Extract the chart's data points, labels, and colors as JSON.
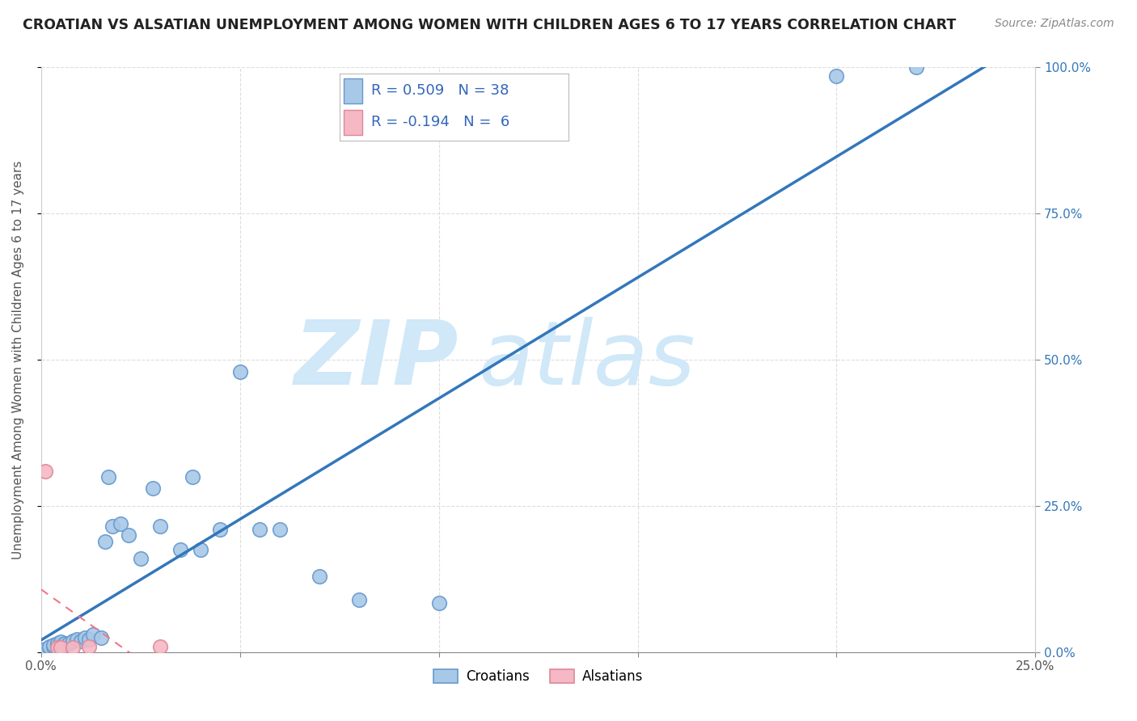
{
  "title": "CROATIAN VS ALSATIAN UNEMPLOYMENT AMONG WOMEN WITH CHILDREN AGES 6 TO 17 YEARS CORRELATION CHART",
  "source": "Source: ZipAtlas.com",
  "ylabel": "Unemployment Among Women with Children Ages 6 to 17 years",
  "xlim": [
    0.0,
    0.25
  ],
  "ylim": [
    0.0,
    1.0
  ],
  "xticks": [
    0.0,
    0.05,
    0.1,
    0.15,
    0.2,
    0.25
  ],
  "yticks": [
    0.0,
    0.25,
    0.5,
    0.75,
    1.0
  ],
  "xticklabels": [
    "0.0%",
    "",
    "",
    "",
    "",
    "25.0%"
  ],
  "yticklabels_right": [
    "0.0%",
    "25.0%",
    "50.0%",
    "75.0%",
    "100.0%"
  ],
  "croatian_x": [
    0.001,
    0.002,
    0.002,
    0.003,
    0.003,
    0.004,
    0.004,
    0.005,
    0.005,
    0.006,
    0.007,
    0.008,
    0.009,
    0.01,
    0.011,
    0.012,
    0.013,
    0.015,
    0.016,
    0.017,
    0.018,
    0.02,
    0.022,
    0.025,
    0.028,
    0.03,
    0.035,
    0.038,
    0.04,
    0.045,
    0.05,
    0.055,
    0.06,
    0.07,
    0.08,
    0.1,
    0.2,
    0.22
  ],
  "croatian_y": [
    0.005,
    0.008,
    0.01,
    0.01,
    0.012,
    0.01,
    0.015,
    0.012,
    0.018,
    0.015,
    0.015,
    0.02,
    0.022,
    0.02,
    0.025,
    0.022,
    0.03,
    0.025,
    0.19,
    0.3,
    0.215,
    0.22,
    0.2,
    0.16,
    0.28,
    0.215,
    0.175,
    0.3,
    0.175,
    0.21,
    0.48,
    0.21,
    0.21,
    0.13,
    0.09,
    0.085,
    0.985,
    1.0
  ],
  "alsatian_x": [
    0.001,
    0.004,
    0.005,
    0.008,
    0.012,
    0.03
  ],
  "alsatian_y": [
    0.31,
    0.008,
    0.008,
    0.008,
    0.01,
    0.01
  ],
  "blue_R": 0.509,
  "blue_N": 38,
  "pink_R": -0.194,
  "pink_N": 6,
  "dot_color_croatian": "#a8c8e8",
  "dot_color_alsatian": "#f5b8c4",
  "dot_edge_croatian": "#6699cc",
  "dot_edge_alsatian": "#dd8899",
  "line_color_croatian": "#3377bb",
  "line_color_alsatian": "#ee7788",
  "watermark_zip": "ZIP",
  "watermark_atlas": "atlas",
  "watermark_color": "#d0e8f8",
  "background_color": "#ffffff",
  "grid_color": "#dddddd",
  "legend_color": "#3366bb"
}
